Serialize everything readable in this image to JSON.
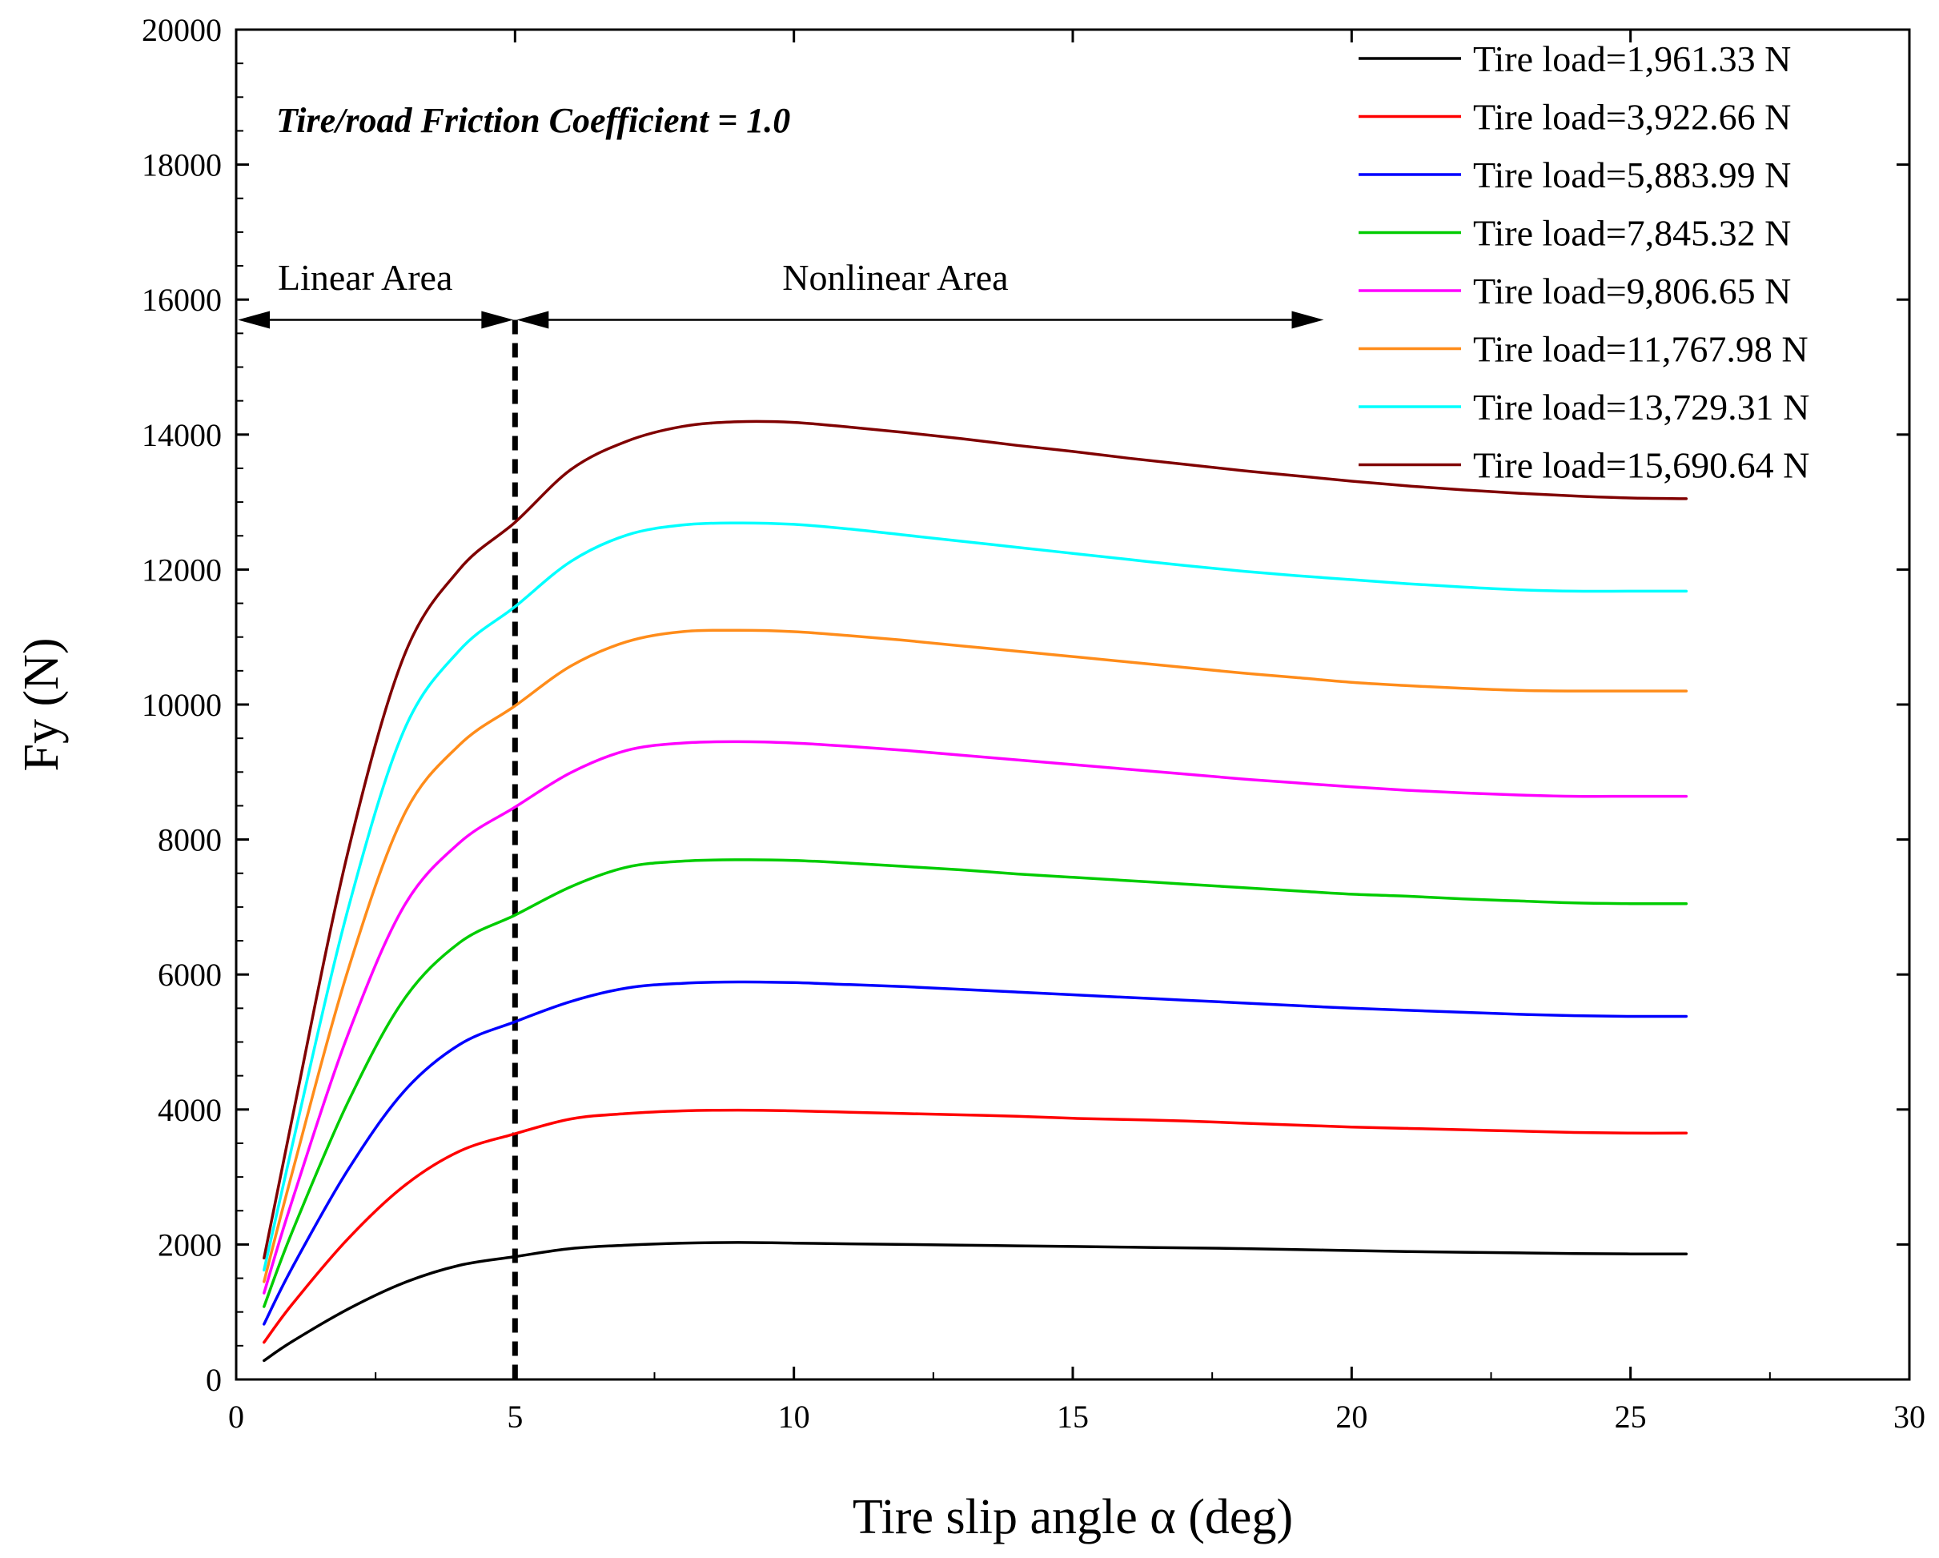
{
  "chart_data": {
    "type": "line",
    "title": "",
    "xlabel": "Tire slip angle α (deg)",
    "ylabel": "Fy (N)",
    "xlim": [
      0,
      30
    ],
    "ylim": [
      0,
      20000
    ],
    "xticks": [
      0,
      5,
      10,
      15,
      20,
      25,
      30
    ],
    "yticks": [
      0,
      2000,
      4000,
      6000,
      8000,
      10000,
      12000,
      14000,
      16000,
      18000,
      20000
    ],
    "grid": false,
    "legend_position": "top-right",
    "x": [
      0.5,
      1,
      2,
      3,
      4,
      5,
      6,
      7,
      8,
      9,
      10,
      11,
      12,
      13,
      14,
      15,
      16,
      17,
      18,
      19,
      20,
      21,
      22,
      23,
      24,
      25,
      26
    ],
    "series": [
      {
        "name": "Tire load=1,961.33 N",
        "color": "#000000",
        "values": [
          280,
          560,
          1040,
          1430,
          1690,
          1820,
          1940,
          1990,
          2020,
          2030,
          2020,
          2010,
          2000,
          1990,
          1980,
          1970,
          1960,
          1950,
          1940,
          1925,
          1910,
          1895,
          1885,
          1875,
          1865,
          1860,
          1860
        ]
      },
      {
        "name": "Tire load=3,922.66 N",
        "color": "#ff0000",
        "values": [
          550,
          1110,
          2080,
          2860,
          3380,
          3640,
          3860,
          3940,
          3980,
          3990,
          3980,
          3960,
          3940,
          3920,
          3900,
          3870,
          3850,
          3830,
          3800,
          3770,
          3740,
          3720,
          3700,
          3680,
          3660,
          3650,
          3650
        ]
      },
      {
        "name": "Tire load=5,883.99 N",
        "color": "#0000ff",
        "values": [
          820,
          1650,
          3100,
          4260,
          4960,
          5300,
          5600,
          5800,
          5870,
          5890,
          5880,
          5850,
          5820,
          5780,
          5740,
          5700,
          5660,
          5620,
          5580,
          5540,
          5500,
          5470,
          5440,
          5410,
          5390,
          5380,
          5380
        ]
      },
      {
        "name": "Tire load=7,845.32 N",
        "color": "#00cc00",
        "values": [
          1080,
          2180,
          4100,
          5620,
          6470,
          6880,
          7300,
          7590,
          7680,
          7700,
          7690,
          7650,
          7600,
          7550,
          7490,
          7440,
          7390,
          7340,
          7290,
          7240,
          7190,
          7160,
          7120,
          7090,
          7060,
          7050,
          7050
        ]
      },
      {
        "name": "Tire load=9,806.65 N",
        "color": "#ff00ff",
        "values": [
          1280,
          2640,
          5100,
          7000,
          7950,
          8480,
          8990,
          9320,
          9430,
          9450,
          9430,
          9380,
          9320,
          9250,
          9180,
          9110,
          9040,
          8970,
          8900,
          8840,
          8780,
          8730,
          8690,
          8660,
          8640,
          8640,
          8640
        ]
      },
      {
        "name": "Tire load=11,767.98 N",
        "color": "#ff8c1a",
        "values": [
          1450,
          3050,
          6050,
          8350,
          9400,
          9980,
          10570,
          10930,
          11080,
          11100,
          11080,
          11020,
          10950,
          10870,
          10790,
          10710,
          10630,
          10550,
          10470,
          10400,
          10330,
          10280,
          10240,
          10210,
          10200,
          10200,
          10200
        ]
      },
      {
        "name": "Tire load=13,729.31 N",
        "color": "#00ffff",
        "values": [
          1620,
          3450,
          6950,
          9600,
          10800,
          11450,
          12120,
          12510,
          12660,
          12690,
          12670,
          12600,
          12510,
          12420,
          12330,
          12240,
          12150,
          12060,
          11980,
          11910,
          11850,
          11790,
          11740,
          11700,
          11680,
          11680,
          11680
        ]
      },
      {
        "name": "Tire load=15,690.64 N",
        "color": "#800000",
        "values": [
          1800,
          3850,
          7800,
          10700,
          12000,
          12700,
          13480,
          13900,
          14120,
          14190,
          14180,
          14110,
          14030,
          13940,
          13840,
          13750,
          13650,
          13560,
          13470,
          13390,
          13310,
          13240,
          13180,
          13130,
          13090,
          13060,
          13050
        ]
      }
    ],
    "annotations": {
      "friction": "Tire/road Friction Coefficient = 1.0",
      "linear": "Linear Area",
      "nonlinear": "Nonlinear Area",
      "divider_x": 5,
      "arrow_y": 15700,
      "arrow_x_start": 0,
      "arrow_x_end": 19.5
    }
  }
}
